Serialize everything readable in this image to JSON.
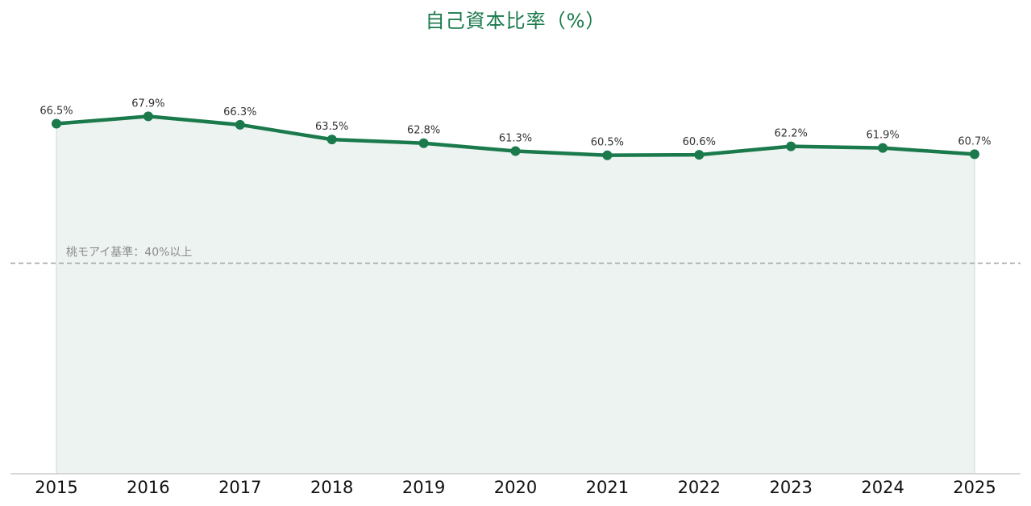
{
  "chart_data": {
    "type": "line",
    "title": "自己資本比率（%）",
    "xlabel": "",
    "ylabel": "",
    "categories": [
      "2015",
      "2016",
      "2017",
      "2018",
      "2019",
      "2020",
      "2021",
      "2022",
      "2023",
      "2024",
      "2025"
    ],
    "series": [
      {
        "values": [
          66.5,
          67.9,
          66.3,
          63.5,
          62.8,
          61.3,
          60.5,
          60.6,
          62.2,
          61.9,
          60.7
        ],
        "data_labels": [
          "66.5%",
          "67.9%",
          "66.3%",
          "63.5%",
          "62.8%",
          "61.3%",
          "60.5%",
          "60.6%",
          "62.2%",
          "61.9%",
          "60.7%"
        ]
      }
    ],
    "reference_line": {
      "value": 40,
      "label": "桃モアイ基準：40%以上",
      "style": "dashed"
    },
    "ylim": [
      0,
      90
    ],
    "grid": false,
    "legend": "none",
    "filled_area": true
  },
  "colors": {
    "line": "#1a7a4c",
    "area": "#edf3f0",
    "reference": "#a6a6a6",
    "title": "#1a7a4c"
  }
}
